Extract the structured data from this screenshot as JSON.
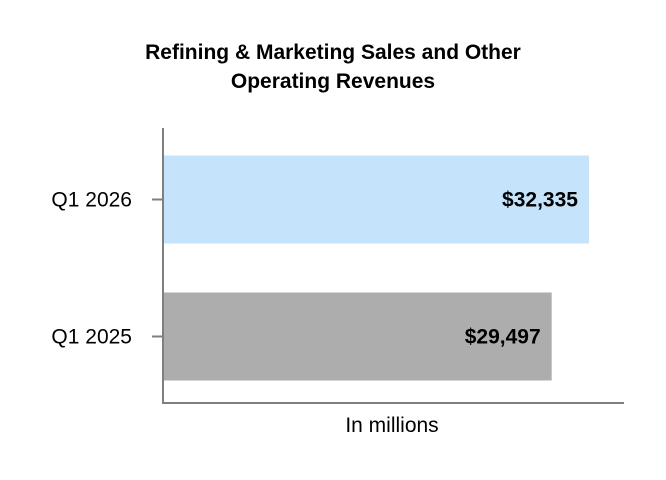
{
  "chart_data": {
    "type": "bar",
    "orientation": "horizontal",
    "title_lines": [
      "Refining & Marketing Sales and Other",
      "Operating Revenues"
    ],
    "categories": [
      "Q1 2026",
      "Q1 2025"
    ],
    "values": [
      32335,
      29497
    ],
    "value_labels": [
      "$32,335",
      "$29,497"
    ],
    "bar_colors": [
      "#c5e3fb",
      "#adadad"
    ],
    "xlabel": "In millions",
    "xlim": [
      0,
      35000
    ],
    "grid": false
  }
}
